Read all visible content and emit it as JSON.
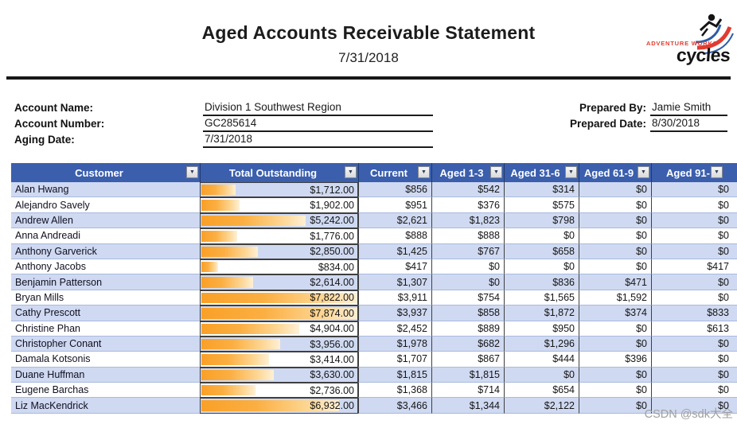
{
  "page": {
    "title": "Aged Accounts Receivable Statement",
    "date": "7/31/2018"
  },
  "logo": {
    "brand": "ADVENTURE WORKS",
    "product": "cycles"
  },
  "account_info": {
    "fields": [
      {
        "label": "Account Name:",
        "value": "Division 1 Southwest Region"
      },
      {
        "label": "Account Number:",
        "value": "GC285614"
      },
      {
        "label": "Aging Date:",
        "value": "7/31/2018"
      }
    ],
    "prepared": [
      {
        "label": "Prepared By:",
        "value": "Jamie Smith"
      },
      {
        "label": "Prepared Date:",
        "value": "8/30/2018"
      }
    ]
  },
  "table": {
    "columns": [
      "Customer",
      "Total Outstanding",
      "Current",
      "Aged 1-3",
      "Aged 31-6",
      "Aged 61-9",
      "Aged 91-"
    ],
    "filter_icon": "▼",
    "rows": [
      {
        "customer": "Alan Hwang",
        "total": "$1,712.00",
        "total_value": 1712,
        "current": "$856",
        "a30": "$542",
        "a60": "$314",
        "a90": "$0",
        "a91": "$0"
      },
      {
        "customer": "Alejandro Savely",
        "total": "$1,902.00",
        "total_value": 1902,
        "current": "$951",
        "a30": "$376",
        "a60": "$575",
        "a90": "$0",
        "a91": "$0"
      },
      {
        "customer": "Andrew Allen",
        "total": "$5,242.00",
        "total_value": 5242,
        "current": "$2,621",
        "a30": "$1,823",
        "a60": "$798",
        "a90": "$0",
        "a91": "$0"
      },
      {
        "customer": "Anna Andreadi",
        "total": "$1,776.00",
        "total_value": 1776,
        "current": "$888",
        "a30": "$888",
        "a60": "$0",
        "a90": "$0",
        "a91": "$0"
      },
      {
        "customer": "Anthony Garverick",
        "total": "$2,850.00",
        "total_value": 2850,
        "current": "$1,425",
        "a30": "$767",
        "a60": "$658",
        "a90": "$0",
        "a91": "$0"
      },
      {
        "customer": "Anthony Jacobs",
        "total": "$834.00",
        "total_value": 834,
        "current": "$417",
        "a30": "$0",
        "a60": "$0",
        "a90": "$0",
        "a91": "$417"
      },
      {
        "customer": "Benjamin Patterson",
        "total": "$2,614.00",
        "total_value": 2614,
        "current": "$1,307",
        "a30": "$0",
        "a60": "$836",
        "a90": "$471",
        "a91": "$0"
      },
      {
        "customer": "Bryan Mills",
        "total": "$7,822.00",
        "total_value": 7822,
        "current": "$3,911",
        "a30": "$754",
        "a60": "$1,565",
        "a90": "$1,592",
        "a91": "$0"
      },
      {
        "customer": "Cathy Prescott",
        "total": "$7,874.00",
        "total_value": 7874,
        "current": "$3,937",
        "a30": "$858",
        "a60": "$1,872",
        "a90": "$374",
        "a91": "$833"
      },
      {
        "customer": "Christine Phan",
        "total": "$4,904.00",
        "total_value": 4904,
        "current": "$2,452",
        "a30": "$889",
        "a60": "$950",
        "a90": "$0",
        "a91": "$613"
      },
      {
        "customer": "Christopher Conant",
        "total": "$3,956.00",
        "total_value": 3956,
        "current": "$1,978",
        "a30": "$682",
        "a60": "$1,296",
        "a90": "$0",
        "a91": "$0"
      },
      {
        "customer": "Damala Kotsonis",
        "total": "$3,414.00",
        "total_value": 3414,
        "current": "$1,707",
        "a30": "$867",
        "a60": "$444",
        "a90": "$396",
        "a91": "$0"
      },
      {
        "customer": "Duane Huffman",
        "total": "$3,630.00",
        "total_value": 3630,
        "current": "$1,815",
        "a30": "$1,815",
        "a60": "$0",
        "a90": "$0",
        "a91": "$0"
      },
      {
        "customer": "Eugene Barchas",
        "total": "$2,736.00",
        "total_value": 2736,
        "current": "$1,368",
        "a30": "$714",
        "a60": "$654",
        "a90": "$0",
        "a91": "$0"
      },
      {
        "customer": "Liz MacKendrick",
        "total": "$6,932.00",
        "total_value": 6932,
        "current": "$3,466",
        "a30": "$1,344",
        "a60": "$2,122",
        "a90": "$0",
        "a91": "$0"
      }
    ]
  },
  "watermark": "CSDN @sdk大全",
  "colors": {
    "header_blue": "#3B5FAD",
    "band_blue": "#CFD9F1",
    "bar_orange": "#F9A028",
    "logo_red": "#E03C31",
    "logo_blue": "#2B5BA8"
  }
}
